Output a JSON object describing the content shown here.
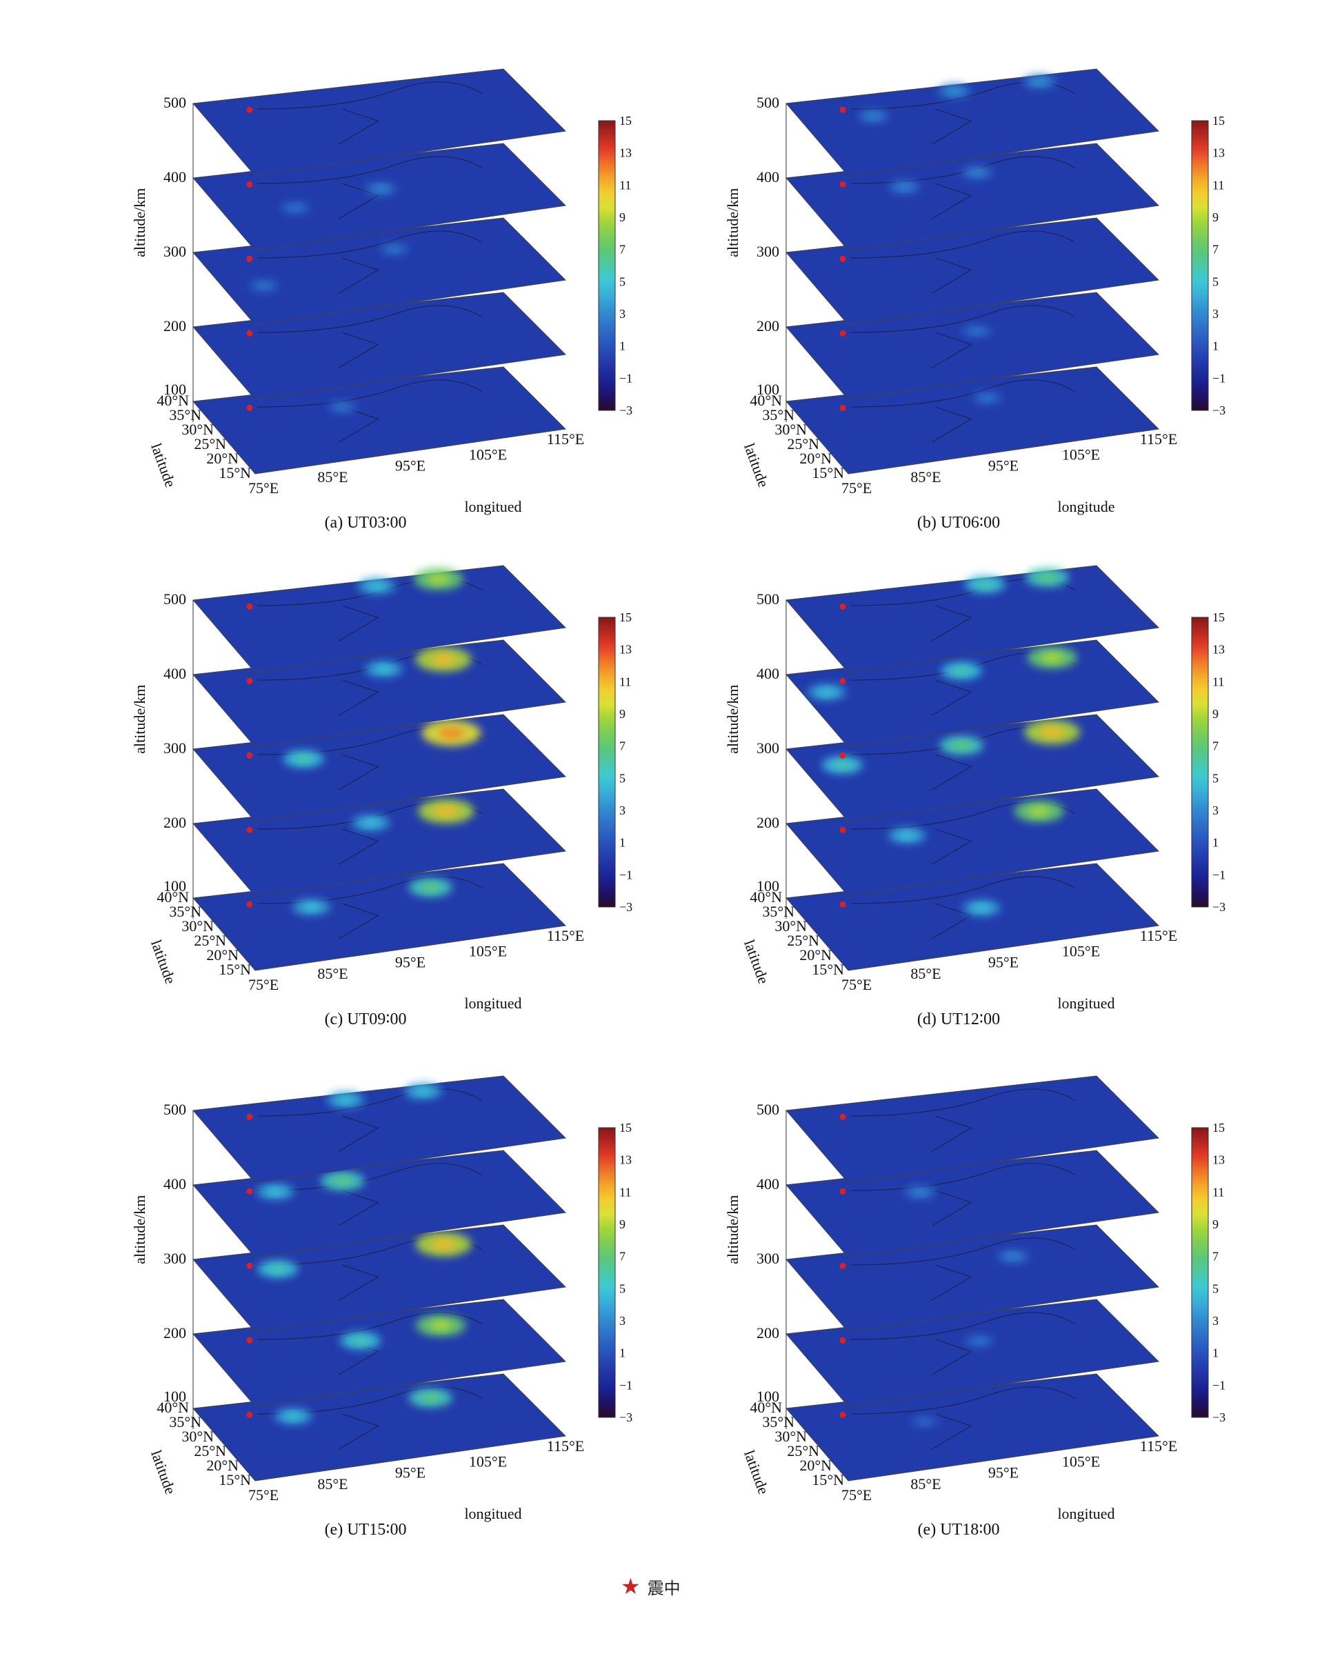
{
  "figure": {
    "legend_symbol_icon": "red-star-icon",
    "legend_label": "震中"
  },
  "chart_data": [
    {
      "type": "heatmap",
      "caption": "(a) UT03∶00",
      "zlabel": "altitude/km",
      "z_ticks": [
        "500",
        "400",
        "300",
        "200",
        "100"
      ],
      "ylabel": "latitude",
      "y_ticks": [
        "40°N",
        "35°N",
        "30°N",
        "25°N",
        "20°N",
        "15°N"
      ],
      "xlabel": "longitued",
      "x_ticks": [
        "75°E",
        "85°E",
        "95°E",
        "105°E",
        "115°E"
      ],
      "colorbar_ticks": [
        "15",
        "13",
        "11",
        "9",
        "7",
        "5",
        "3",
        "1",
        "−1",
        "−3"
      ],
      "colorbar_range": [
        -3,
        15
      ],
      "layers_km": [
        500,
        400,
        300,
        200,
        100
      ],
      "epicenter": {
        "lon": 81,
        "lat": 36
      },
      "hotspots": [
        {
          "layer": 400,
          "lon": 96,
          "lat": 30,
          "value": 3
        },
        {
          "layer": 400,
          "lon": 84,
          "lat": 27,
          "value": 2.5
        },
        {
          "layer": 300,
          "lon": 80,
          "lat": 27,
          "value": 2.5
        },
        {
          "layer": 300,
          "lon": 99,
          "lat": 34,
          "value": 2.5
        },
        {
          "layer": 100,
          "lon": 92,
          "lat": 33,
          "value": 2.5
        }
      ]
    },
    {
      "type": "heatmap",
      "caption": "(b) UT06∶00",
      "zlabel": "altitude/km",
      "z_ticks": [
        "500",
        "400",
        "300",
        "200",
        "100"
      ],
      "ylabel": "latitude",
      "y_ticks": [
        "40°N",
        "35°N",
        "30°N",
        "25°N",
        "20°N",
        "15°N"
      ],
      "xlabel": "longitude",
      "x_ticks": [
        "75°E",
        "85°E",
        "95°E",
        "105°E",
        "115°E"
      ],
      "colorbar_ticks": [
        "15",
        "13",
        "11",
        "9",
        "7",
        "5",
        "3",
        "1",
        "−1",
        "−3"
      ],
      "colorbar_range": [
        -3,
        15
      ],
      "layers_km": [
        500,
        400,
        300,
        200,
        100
      ],
      "epicenter": {
        "lon": 81,
        "lat": 36
      },
      "hotspots": [
        {
          "layer": 500,
          "lon": 84,
          "lat": 33,
          "value": 3
        },
        {
          "layer": 500,
          "lon": 96,
          "lat": 38,
          "value": 3.5
        },
        {
          "layer": 500,
          "lon": 107,
          "lat": 38,
          "value": 3.5
        },
        {
          "layer": 400,
          "lon": 88,
          "lat": 33,
          "value": 3
        },
        {
          "layer": 400,
          "lon": 98,
          "lat": 35,
          "value": 3
        },
        {
          "layer": 200,
          "lon": 97,
          "lat": 32,
          "value": 2.5
        },
        {
          "layer": 100,
          "lon": 99,
          "lat": 34,
          "value": 2.5
        }
      ]
    },
    {
      "type": "heatmap",
      "caption": "(c) UT09∶00",
      "zlabel": "altitude/km",
      "z_ticks": [
        "500",
        "400",
        "300",
        "200",
        "100"
      ],
      "ylabel": "latitude",
      "y_ticks": [
        "40°N",
        "35°N",
        "30°N",
        "25°N",
        "20°N",
        "15°N"
      ],
      "xlabel": "longitued",
      "x_ticks": [
        "75°E",
        "85°E",
        "95°E",
        "105°E",
        "115°E"
      ],
      "colorbar_ticks": [
        "15",
        "13",
        "11",
        "9",
        "7",
        "5",
        "3",
        "1",
        "−1",
        "−3"
      ],
      "colorbar_range": [
        -3,
        15
      ],
      "layers_km": [
        500,
        400,
        300,
        200,
        100
      ],
      "epicenter": {
        "lon": 81,
        "lat": 36
      },
      "hotspots": [
        {
          "layer": 500,
          "lon": 98,
          "lat": 38,
          "value": 5
        },
        {
          "layer": 500,
          "lon": 106,
          "lat": 38,
          "value": 9
        },
        {
          "layer": 400,
          "lon": 106,
          "lat": 36,
          "value": 11
        },
        {
          "layer": 400,
          "lon": 98,
          "lat": 35,
          "value": 5
        },
        {
          "layer": 300,
          "lon": 107,
          "lat": 36,
          "value": 12
        },
        {
          "layer": 300,
          "lon": 87,
          "lat": 33,
          "value": 6
        },
        {
          "layer": 200,
          "lon": 106,
          "lat": 35,
          "value": 11
        },
        {
          "layer": 200,
          "lon": 96,
          "lat": 34,
          "value": 5
        },
        {
          "layer": 100,
          "lon": 104,
          "lat": 35,
          "value": 7
        },
        {
          "layer": 100,
          "lon": 88,
          "lat": 33,
          "value": 5
        }
      ]
    },
    {
      "type": "heatmap",
      "caption": "(d) UT12∶00",
      "zlabel": "altitude/km",
      "z_ticks": [
        "500",
        "400",
        "300",
        "200",
        "100"
      ],
      "ylabel": "latitude",
      "y_ticks": [
        "40°N",
        "35°N",
        "30°N",
        "25°N",
        "20°N",
        "15°N"
      ],
      "xlabel": "longitued",
      "x_ticks": [
        "75°E",
        "85°E",
        "95°E",
        "105°E",
        "115°E"
      ],
      "colorbar_ticks": [
        "15",
        "13",
        "11",
        "9",
        "7",
        "5",
        "3",
        "1",
        "−1",
        "−3"
      ],
      "colorbar_range": [
        -3,
        15
      ],
      "layers_km": [
        500,
        400,
        300,
        200,
        100
      ],
      "epicenter": {
        "lon": 81,
        "lat": 36
      },
      "hotspots": [
        {
          "layer": 500,
          "lon": 100,
          "lat": 38,
          "value": 6
        },
        {
          "layer": 500,
          "lon": 108,
          "lat": 38,
          "value": 7
        },
        {
          "layer": 400,
          "lon": 108,
          "lat": 36,
          "value": 9
        },
        {
          "layer": 400,
          "lon": 96,
          "lat": 35,
          "value": 6
        },
        {
          "layer": 400,
          "lon": 78,
          "lat": 33,
          "value": 5
        },
        {
          "layer": 300,
          "lon": 108,
          "lat": 36,
          "value": 11
        },
        {
          "layer": 300,
          "lon": 96,
          "lat": 35,
          "value": 7
        },
        {
          "layer": 300,
          "lon": 80,
          "lat": 33,
          "value": 6
        },
        {
          "layer": 200,
          "lon": 106,
          "lat": 35,
          "value": 9
        },
        {
          "layer": 200,
          "lon": 88,
          "lat": 32,
          "value": 5
        },
        {
          "layer": 100,
          "lon": 97,
          "lat": 30,
          "value": 5
        }
      ]
    },
    {
      "type": "heatmap",
      "caption": "(e) UT15∶00",
      "zlabel": "altitude/km",
      "z_ticks": [
        "500",
        "400",
        "300",
        "200",
        "100"
      ],
      "ylabel": "latitude",
      "y_ticks": [
        "40°N",
        "35°N",
        "30°N",
        "25°N",
        "20°N",
        "15°N"
      ],
      "xlabel": "longitued",
      "x_ticks": [
        "75°E",
        "85°E",
        "95°E",
        "105°E",
        "115°E"
      ],
      "colorbar_ticks": [
        "15",
        "13",
        "11",
        "9",
        "7",
        "5",
        "3",
        "1",
        "−1",
        "−3"
      ],
      "colorbar_range": [
        -3,
        15
      ],
      "layers_km": [
        500,
        400,
        300,
        200,
        100
      ],
      "epicenter": {
        "lon": 81,
        "lat": 36
      },
      "hotspots": [
        {
          "layer": 500,
          "lon": 94,
          "lat": 38,
          "value": 5
        },
        {
          "layer": 500,
          "lon": 104,
          "lat": 38,
          "value": 5
        },
        {
          "layer": 400,
          "lon": 93,
          "lat": 36,
          "value": 7
        },
        {
          "layer": 400,
          "lon": 84,
          "lat": 35,
          "value": 5
        },
        {
          "layer": 300,
          "lon": 106,
          "lat": 36,
          "value": 11
        },
        {
          "layer": 300,
          "lon": 84,
          "lat": 34,
          "value": 6
        },
        {
          "layer": 200,
          "lon": 105,
          "lat": 34,
          "value": 9
        },
        {
          "layer": 200,
          "lon": 94,
          "lat": 32,
          "value": 6
        },
        {
          "layer": 100,
          "lon": 104,
          "lat": 35,
          "value": 7
        },
        {
          "layer": 100,
          "lon": 86,
          "lat": 34,
          "value": 5
        }
      ]
    },
    {
      "type": "heatmap",
      "caption": "(e) UT18∶00",
      "zlabel": "altitude/km",
      "z_ticks": [
        "500",
        "400",
        "300",
        "200",
        "100"
      ],
      "ylabel": "latitude",
      "y_ticks": [
        "40°N",
        "35°N",
        "30°N",
        "25°N",
        "20°N",
        "15°N"
      ],
      "xlabel": "longitued",
      "x_ticks": [
        "75°E",
        "85°E",
        "95°E",
        "105°E",
        "115°E"
      ],
      "colorbar_ticks": [
        "15",
        "13",
        "11",
        "9",
        "7",
        "5",
        "3",
        "1",
        "−1",
        "−3"
      ],
      "colorbar_range": [
        -3,
        15
      ],
      "layers_km": [
        500,
        400,
        300,
        200,
        100
      ],
      "epicenter": {
        "lon": 81,
        "lat": 36
      },
      "hotspots": [
        {
          "layer": 400,
          "lon": 90,
          "lat": 33,
          "value": 3
        },
        {
          "layer": 300,
          "lon": 102,
          "lat": 33,
          "value": 3
        },
        {
          "layer": 200,
          "lon": 97,
          "lat": 31,
          "value": 2.5
        },
        {
          "layer": 100,
          "lon": 90,
          "lat": 31,
          "value": 2
        }
      ]
    }
  ]
}
